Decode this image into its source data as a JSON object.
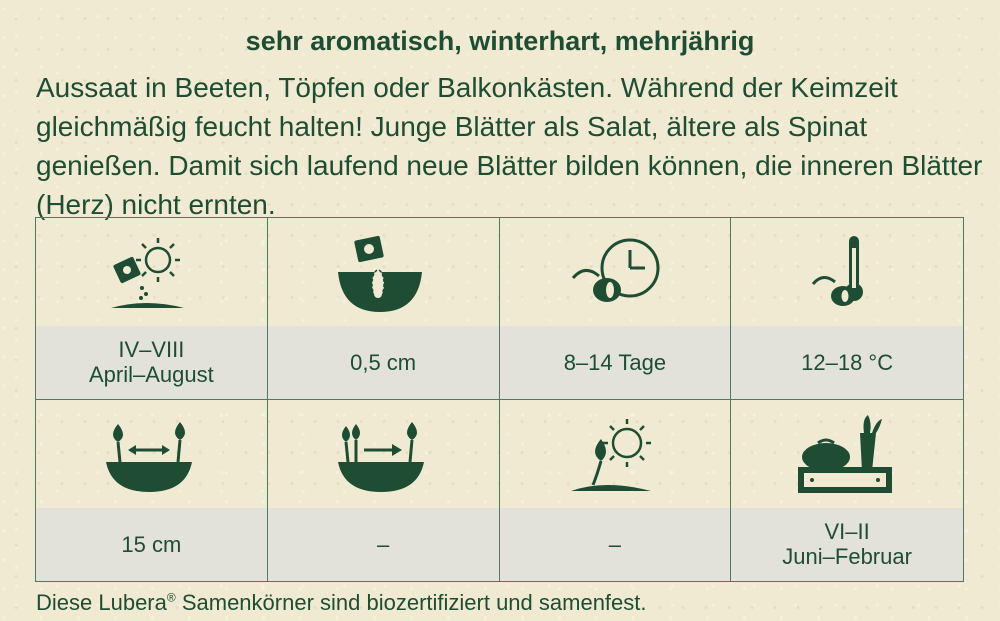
{
  "heading": "sehr aromatisch, winterhart, mehrjährig",
  "description": "Aussaat in Beeten, Töpfen oder Balkonkästen. Während der Keimzeit gleichmäßig feucht halten! Junge Blätter als Salat, ältere als Spinat genießen. Damit sich laufend neue Blätter bilden können, die inneren Blätter (Herz) nicht ernten.",
  "cells": [
    {
      "icon": "sowing-sun-icon",
      "line1": "IV–VIII",
      "line2": "April–August"
    },
    {
      "icon": "sowing-depth-icon",
      "line1": "0,5 cm",
      "line2": ""
    },
    {
      "icon": "germination-time-icon",
      "line1": "8–14 Tage",
      "line2": ""
    },
    {
      "icon": "germination-temperature-icon",
      "line1": "12–18 °C",
      "line2": ""
    },
    {
      "icon": "plant-spacing-icon",
      "line1": "15 cm",
      "line2": ""
    },
    {
      "icon": "row-spacing-icon",
      "line1": "–",
      "line2": ""
    },
    {
      "icon": "planting-sun-icon",
      "line1": "–",
      "line2": ""
    },
    {
      "icon": "harvest-crate-icon",
      "line1": "VI–II",
      "line2": "Juni–Februar"
    }
  ],
  "footer": {
    "prefix": "Diese Lubera",
    "reg": "®",
    "suffix": " Samenkörner sind biozertifiziert und samenfest."
  },
  "colors": {
    "primary": "#1e4d34",
    "label_bg": "#e2e2da",
    "paper": "#f1ead3"
  }
}
